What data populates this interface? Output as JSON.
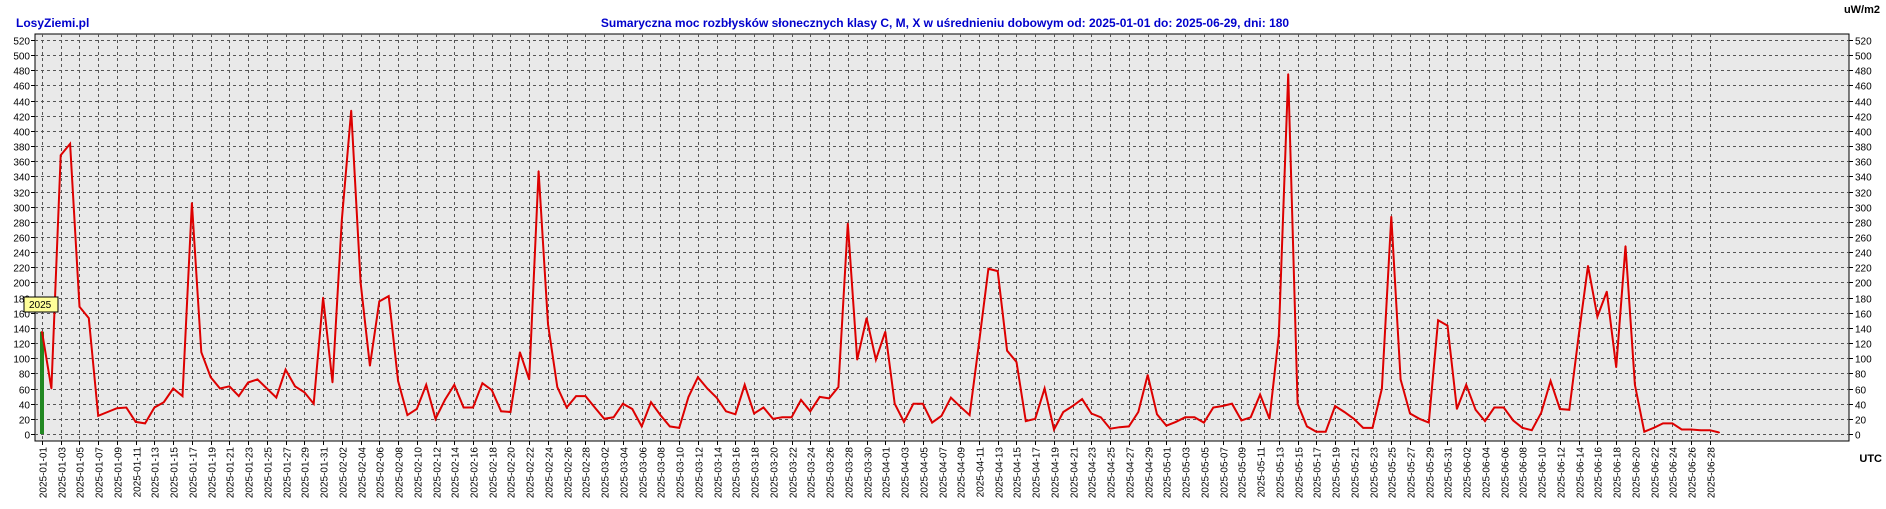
{
  "brand": "LosyZiemi.pl",
  "unit": "uW/m2",
  "utc": "UTC",
  "year_tag": "2025",
  "colors": {
    "line": "#dd0000",
    "title": "#0000cc",
    "plot_bg": "#e9e9e9",
    "grid": "#555555",
    "green_bar": "#228822"
  },
  "chart_data": {
    "type": "line",
    "title": "Sumaryczna moc rozbłysków słonecznych klasy C, M, X w uśrednieniu dobowym od: 2025-01-01 do: 2025-06-29, dni: 180",
    "xlabel": "UTC",
    "ylabel": "uW/m2",
    "ylim": [
      0,
      520
    ],
    "yticks": [
      0,
      20,
      40,
      60,
      80,
      100,
      120,
      140,
      160,
      180,
      200,
      220,
      240,
      260,
      280,
      300,
      320,
      340,
      360,
      380,
      400,
      420,
      440,
      460,
      480,
      500,
      520
    ],
    "grid": true,
    "x_start": "2025-01-01",
    "x_end": "2025-06-29",
    "x_tick_labels": [
      "2025-01-01",
      "2025-01-03",
      "2025-01-05",
      "2025-01-07",
      "2025-01-09",
      "2025-01-11",
      "2025-01-13",
      "2025-01-15",
      "2025-01-17",
      "2025-01-19",
      "2025-01-21",
      "2025-01-23",
      "2025-01-25",
      "2025-01-27",
      "2025-01-29",
      "2025-01-31",
      "2025-02-02",
      "2025-02-04",
      "2025-02-06",
      "2025-02-08",
      "2025-02-10",
      "2025-02-12",
      "2025-02-14",
      "2025-02-16",
      "2025-02-18",
      "2025-02-20",
      "2025-02-22",
      "2025-02-24",
      "2025-02-26",
      "2025-02-28",
      "2025-03-02",
      "2025-03-04",
      "2025-03-06",
      "2025-03-08",
      "2025-03-10",
      "2025-03-12",
      "2025-03-14",
      "2025-03-16",
      "2025-03-18",
      "2025-03-20",
      "2025-03-22",
      "2025-03-24",
      "2025-03-26",
      "2025-03-28",
      "2025-03-30",
      "2025-04-01",
      "2025-04-03",
      "2025-04-05",
      "2025-04-07",
      "2025-04-09",
      "2025-04-11",
      "2025-04-13",
      "2025-04-15",
      "2025-04-17",
      "2025-04-19",
      "2025-04-21",
      "2025-04-23",
      "2025-04-25",
      "2025-04-27",
      "2025-04-29",
      "2025-05-01",
      "2025-05-03",
      "2025-05-05",
      "2025-05-07",
      "2025-05-09",
      "2025-05-11",
      "2025-05-13",
      "2025-05-15",
      "2025-05-17",
      "2025-05-19",
      "2025-05-21",
      "2025-05-23",
      "2025-05-25",
      "2025-05-27",
      "2025-05-29",
      "2025-05-31",
      "2025-06-02",
      "2025-06-04",
      "2025-06-06",
      "2025-06-08",
      "2025-06-10",
      "2025-06-12",
      "2025-06-14",
      "2025-06-16",
      "2025-06-18",
      "2025-06-20",
      "2025-06-22",
      "2025-06-24",
      "2025-06-26",
      "2025-06-28"
    ],
    "series": [
      {
        "values": [
          135,
          60,
          368,
          383,
          168,
          153,
          24,
          29,
          34,
          35,
          16,
          14,
          35,
          42,
          60,
          50,
          305,
          108,
          75,
          60,
          63,
          50,
          68,
          72,
          60,
          48,
          85,
          63,
          55,
          40,
          180,
          68,
          282,
          427,
          200,
          90,
          175,
          182,
          70,
          25,
          33,
          65,
          20,
          45,
          65,
          35,
          35,
          67,
          58,
          30,
          29,
          108,
          72,
          347,
          145,
          62,
          35,
          50,
          50,
          35,
          20,
          22,
          40,
          33,
          10,
          42,
          25,
          10,
          8,
          49,
          75,
          60,
          48,
          30,
          26,
          65,
          27,
          35,
          20,
          22,
          22,
          45,
          30,
          49,
          47,
          62,
          278,
          98,
          153,
          98,
          135,
          40,
          16,
          40,
          40,
          15,
          24,
          48,
          36,
          25,
          120,
          218,
          215,
          110,
          95,
          17,
          20,
          60,
          6,
          29,
          37,
          46,
          27,
          22,
          7,
          9,
          10,
          29,
          78,
          26,
          11,
          16,
          22,
          22,
          15,
          35,
          37,
          40,
          18,
          22,
          52,
          20,
          130,
          475,
          40,
          10,
          3,
          3,
          37,
          29,
          20,
          8,
          8,
          60,
          287,
          72,
          27,
          20,
          15,
          150,
          143,
          33,
          65,
          32,
          17,
          35,
          35,
          18,
          8,
          5,
          28,
          70,
          33,
          32,
          130,
          222,
          155,
          188,
          88,
          248,
          65,
          3,
          8,
          14,
          14,
          6,
          6,
          5,
          5,
          2
        ]
      }
    ]
  }
}
